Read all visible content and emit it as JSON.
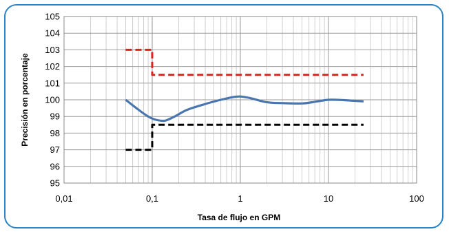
{
  "chart_data": {
    "type": "line",
    "title": "",
    "xlabel": "Tasa de flujo en GPM",
    "ylabel": "Precisión en porcentaje",
    "x_scale": "log",
    "xlim": [
      0.01,
      100
    ],
    "ylim": [
      95,
      105
    ],
    "x_ticks": [
      "0,01",
      "0,1",
      "1",
      "10",
      "100"
    ],
    "x_tick_values": [
      0.01,
      0.1,
      1,
      10,
      100
    ],
    "y_ticks": [
      "95",
      "96",
      "97",
      "98",
      "99",
      "100",
      "101",
      "102",
      "103",
      "104",
      "105"
    ],
    "grid": true,
    "legend": "none",
    "series": [
      {
        "color": "#4a76b0",
        "style": "solid",
        "points": [
          [
            0.05,
            100.0
          ],
          [
            0.07,
            99.4
          ],
          [
            0.09,
            99.0
          ],
          [
            0.11,
            98.8
          ],
          [
            0.14,
            98.75
          ],
          [
            0.18,
            99.0
          ],
          [
            0.25,
            99.4
          ],
          [
            0.4,
            99.75
          ],
          [
            0.6,
            100.0
          ],
          [
            0.8,
            100.15
          ],
          [
            1.0,
            100.2
          ],
          [
            1.3,
            100.1
          ],
          [
            2.0,
            99.85
          ],
          [
            3.0,
            99.8
          ],
          [
            5.0,
            99.78
          ],
          [
            7.0,
            99.88
          ],
          [
            10.0,
            100.0
          ],
          [
            15.0,
            99.98
          ],
          [
            25.0,
            99.9
          ]
        ]
      },
      {
        "color": "#e02020",
        "style": "dashed",
        "points": [
          [
            0.05,
            103.0
          ],
          [
            0.1,
            103.0
          ],
          [
            0.1,
            101.5
          ],
          [
            25.0,
            101.5
          ]
        ]
      },
      {
        "color": "#000000",
        "style": "dashed",
        "points": [
          [
            0.05,
            97.0
          ],
          [
            0.1,
            97.0
          ],
          [
            0.1,
            98.5
          ],
          [
            25.0,
            98.5
          ]
        ]
      }
    ]
  }
}
